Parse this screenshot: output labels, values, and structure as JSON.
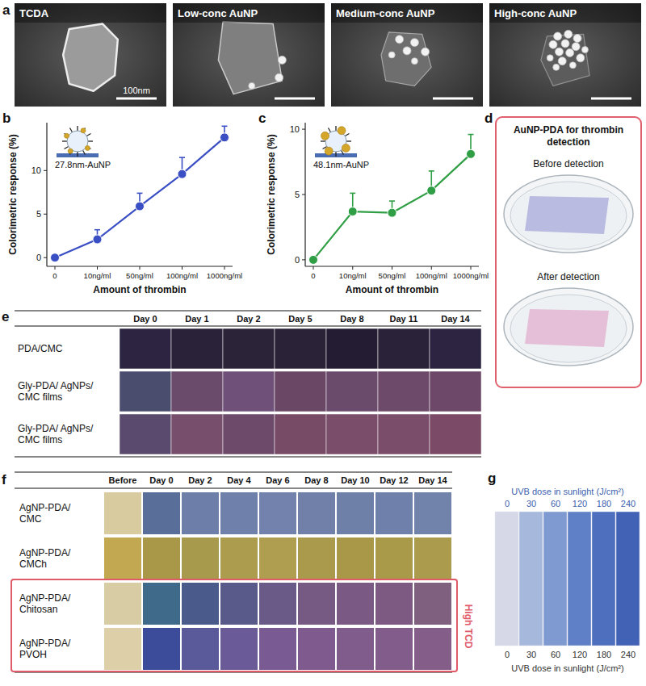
{
  "panel_letters": [
    "a",
    "b",
    "c",
    "d",
    "e",
    "f",
    "g"
  ],
  "sem_images": {
    "labels": [
      "TCDA",
      "Low-conc AuNP",
      "Medium-conc AuNP",
      "High-conc AuNP"
    ],
    "scale_bar": "100nm"
  },
  "chart_data": [
    {
      "type": "line",
      "annotations": [
        "27.8nm-AuNP"
      ],
      "x_label": "Amount of thrombin",
      "y_label": "Colorimetric response (%)",
      "categories": [
        "0",
        "10ng/ml",
        "50ng/ml",
        "100ng/ml",
        "1000ng/ml"
      ],
      "values": [
        0,
        2.1,
        5.9,
        9.6,
        13.8
      ],
      "errors": [
        0,
        1.1,
        1.5,
        1.9,
        1.3
      ],
      "color": "#3b4fc4",
      "marker": "circle",
      "ylim": [
        -1,
        15.5
      ],
      "yticks": [
        0,
        5,
        10
      ]
    },
    {
      "type": "line",
      "annotations": [
        "48.1nm-AuNP"
      ],
      "x_label": "Amount of thrombin",
      "y_label": "Colorimetric response (%)",
      "categories": [
        "0",
        "10ng/ml",
        "50ng/ml",
        "100ng/ml",
        "1000ng/ml"
      ],
      "values": [
        0,
        3.7,
        3.6,
        5.3,
        8.1
      ],
      "errors": [
        0,
        1.4,
        0.9,
        1.5,
        1.5
      ],
      "color": "#2f9e44",
      "marker": "circle",
      "ylim": [
        -0.5,
        10.5
      ],
      "yticks": [
        0,
        5,
        10
      ]
    }
  ],
  "thrombin_photo": {
    "title": "AuNP-PDA for thrombin detection",
    "panels": [
      {
        "label": "Before detection",
        "film_color": "#b3b6de"
      },
      {
        "label": "After detection",
        "film_color": "#e3b9d4"
      }
    ]
  },
  "table_e": {
    "columns": [
      "Day 0",
      "Day 1",
      "Day 2",
      "Day 5",
      "Day 8",
      "Day 11",
      "Day 14"
    ],
    "rows": [
      {
        "label": "PDA/CMC",
        "colors": [
          "#2c2440",
          "#2a2238",
          "#2b2338",
          "#2a2236",
          "#231c33",
          "#2a2238",
          "#2c2440"
        ]
      },
      {
        "label": "Gly-PDA/ AgNPs/ CMC films",
        "colors": [
          "#4b4d6e",
          "#6a4b6c",
          "#6f5078",
          "#6b4766",
          "#6b4b6b",
          "#6d4a6a",
          "#6e4868"
        ]
      },
      {
        "label": "Gly-PDA/ AgNPs/ CMC films",
        "colors": [
          "#5a4a6e",
          "#774e6c",
          "#6d4a6a",
          "#774a66",
          "#7a4d6a",
          "#7a4e6a",
          "#7a4a66"
        ]
      }
    ]
  },
  "table_f": {
    "columns": [
      "Before",
      "Day 0",
      "Day 2",
      "Day 4",
      "Day 6",
      "Day 8",
      "Day 10",
      "Day 12",
      "Day 14"
    ],
    "rows": [
      {
        "label": "AgNP-PDA/ CMC",
        "highlight": false,
        "colors": [
          "#d8cba0",
          "#5a6e9a",
          "#6d7ea8",
          "#6f80aa",
          "#7282ac",
          "#7080a8",
          "#6e7fa8",
          "#6f80aa",
          "#7182ab"
        ]
      },
      {
        "label": "AgNP-PDA/ CMCh",
        "highlight": false,
        "colors": [
          "#c2a850",
          "#a89848",
          "#a89a4c",
          "#ac9c4e",
          "#b09e50",
          "#aa9a4c",
          "#a89848",
          "#a99a4a",
          "#ab9b4c"
        ]
      },
      {
        "label": "AgNP-PDA/ Chitosan",
        "highlight": true,
        "colors": [
          "#d8cca4",
          "#3f6a8a",
          "#4a5a8a",
          "#5a5a8a",
          "#6a5a88",
          "#765a84",
          "#7a5a84",
          "#7c5a82",
          "#80607f"
        ]
      },
      {
        "label": "AgNP-PDA/ PVOH",
        "highlight": true,
        "colors": [
          "#ddd0a8",
          "#3c4c9a",
          "#5a5a9a",
          "#6a5a98",
          "#7a5a92",
          "#7e5a8e",
          "#805c8c",
          "#825c8a",
          "#845e88"
        ]
      }
    ],
    "annotation": "High TCD"
  },
  "uvb_strips": {
    "title": "UVB dose in sunlight (J/cm²)",
    "doses": [
      0,
      30,
      60,
      120,
      180,
      240
    ],
    "colors": [
      "#d6d8e8",
      "#a6b8dc",
      "#7e9ad0",
      "#5f80c6",
      "#4e6ebe",
      "#4262b6"
    ]
  }
}
